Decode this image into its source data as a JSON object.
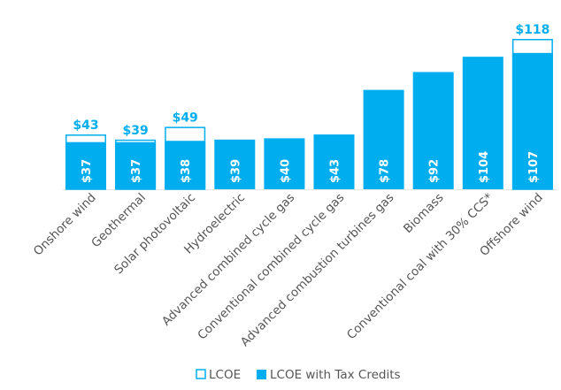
{
  "chart_data": {
    "type": "bar",
    "categories": [
      "Onshore wind",
      "Geothermal",
      "Solar photovoltaic",
      "Hydroelectric",
      "Advanced combined cycle gas",
      "Conventional combined cycle gas",
      "Advanced combustion turbines gas",
      "Biomass",
      "Conventional coal with 30% CCS*",
      "Offshore wind"
    ],
    "series": [
      {
        "name": "LCOE",
        "values": [
          43,
          39,
          49,
          39,
          40,
          43,
          78,
          92,
          104,
          118
        ],
        "labels": [
          "$43",
          "$39",
          "$49",
          null,
          null,
          null,
          null,
          null,
          null,
          "$118"
        ],
        "style": "outline"
      },
      {
        "name": "LCOE with Tax Credits",
        "values": [
          37,
          37,
          38,
          39,
          40,
          43,
          78,
          92,
          104,
          107
        ],
        "labels": [
          "$37",
          "$37",
          "$38",
          "$39",
          "$40",
          "$43",
          "$78",
          "$92",
          "$104",
          "$107"
        ],
        "style": "filled"
      }
    ],
    "ylim": [
      0,
      118
    ],
    "grid": false,
    "legend": "bottom-center",
    "color": "#00aeef"
  }
}
